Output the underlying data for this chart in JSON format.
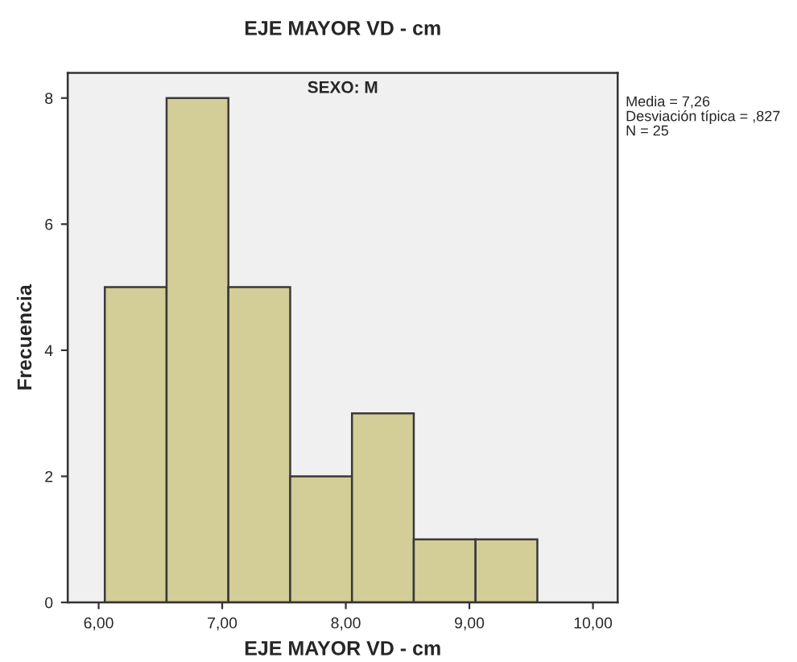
{
  "chart_data": {
    "type": "histogram",
    "title": "EJE MAYOR VD - cm",
    "subtitle": "SEXO: M",
    "xlabel": "EJE MAYOR VD - cm",
    "ylabel": "Frecuencia",
    "bins": [
      6.05,
      6.55,
      7.05,
      7.55,
      8.05,
      8.55,
      9.05,
      9.55
    ],
    "values": [
      5,
      8,
      5,
      2,
      3,
      1,
      1
    ],
    "color": "#d3ce97",
    "xlim": [
      5.75,
      10.2
    ],
    "xticks": [
      {
        "value": 6,
        "label": "6,00"
      },
      {
        "value": 7,
        "label": "7,00"
      },
      {
        "value": 8,
        "label": "8,00"
      },
      {
        "value": 9,
        "label": "9,00"
      },
      {
        "value": 10,
        "label": "10,00"
      }
    ],
    "ylim": [
      0,
      8.4
    ],
    "yticks": [
      0,
      2,
      4,
      6,
      8
    ],
    "grid": false,
    "legend": false,
    "annotations": [
      "Media = 7,26",
      "Desviación típica = ,827",
      "N = 25"
    ]
  }
}
